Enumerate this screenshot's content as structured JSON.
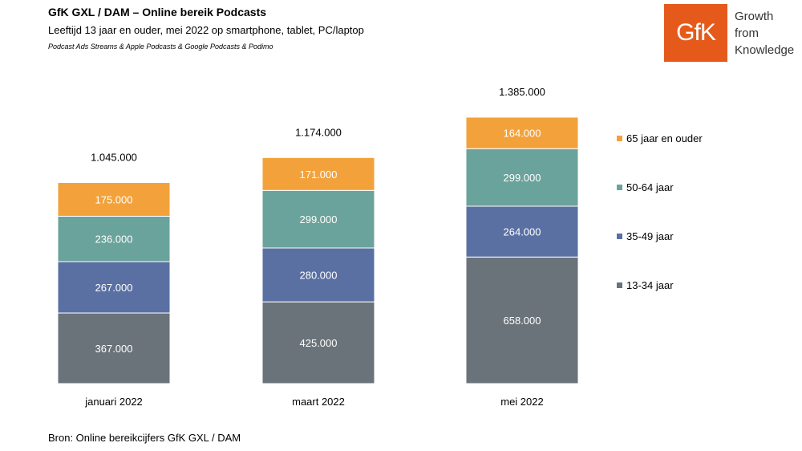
{
  "header": {
    "title": "GfK GXL / DAM – Online bereik Podcasts",
    "subtitle": "Leeftijd 13 jaar en ouder, mei 2022 op smartphone, tablet, PC/laptop",
    "note": "Podcast Ads Streams & Apple Podcasts & Google Podcasts & Podimo"
  },
  "logo": {
    "mark": "GfK",
    "tagline": [
      "Growth",
      "from",
      "Knowledge"
    ],
    "color": "#e55a1b"
  },
  "footer": {
    "source": "Bron: Online bereikcijfers GfK GXL / DAM"
  },
  "chart_data": {
    "type": "bar",
    "stacked": true,
    "categories": [
      "januari 2022",
      "maart 2022",
      "mei 2022"
    ],
    "series": [
      {
        "name": "13-34 jaar",
        "color": "#6a737a",
        "values": [
          367000,
          425000,
          658000
        ],
        "labels": [
          "367.000",
          "425.000",
          "658.000"
        ]
      },
      {
        "name": "35-49 jaar",
        "color": "#5a70a3",
        "values": [
          267000,
          280000,
          264000
        ],
        "labels": [
          "267.000",
          "280.000",
          "264.000"
        ]
      },
      {
        "name": "50-64 jaar",
        "color": "#6aa39b",
        "values": [
          236000,
          299000,
          299000
        ],
        "labels": [
          "236.000",
          "299.000",
          "299.000"
        ]
      },
      {
        "name": "65 jaar en ouder",
        "color": "#f3a23b",
        "values": [
          175000,
          171000,
          164000
        ],
        "labels": [
          "175.000",
          "171.000",
          "164.000"
        ]
      }
    ],
    "totals": [
      1045000,
      1174000,
      1385000
    ],
    "total_labels": [
      "1.045.000",
      "1.174.000",
      "1.385.000"
    ],
    "ylim": [
      0,
      1385000
    ],
    "grid": false,
    "legend_position": "right"
  }
}
